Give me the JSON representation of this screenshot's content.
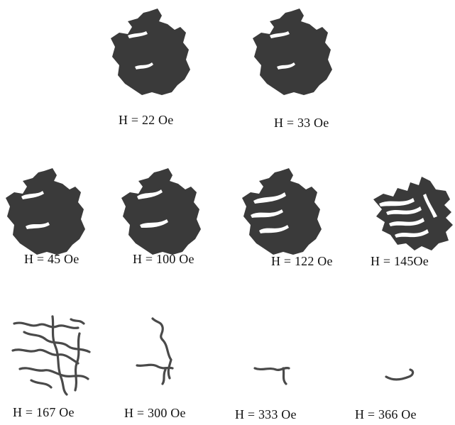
{
  "figure": {
    "panels": [
      {
        "label": "H = 22 Oe"
      },
      {
        "label": "H = 33 Oe"
      },
      {
        "label": "H = 45 Oe"
      },
      {
        "label": "H = 100 Oe"
      },
      {
        "label": "H = 122 Oe"
      },
      {
        "label": "H = 145Oe"
      },
      {
        "label": "H = 167 Oe"
      },
      {
        "label": "H = 300 Oe"
      },
      {
        "label": "H = 333 Oe"
      },
      {
        "label": "H = 366 Oe"
      }
    ]
  }
}
